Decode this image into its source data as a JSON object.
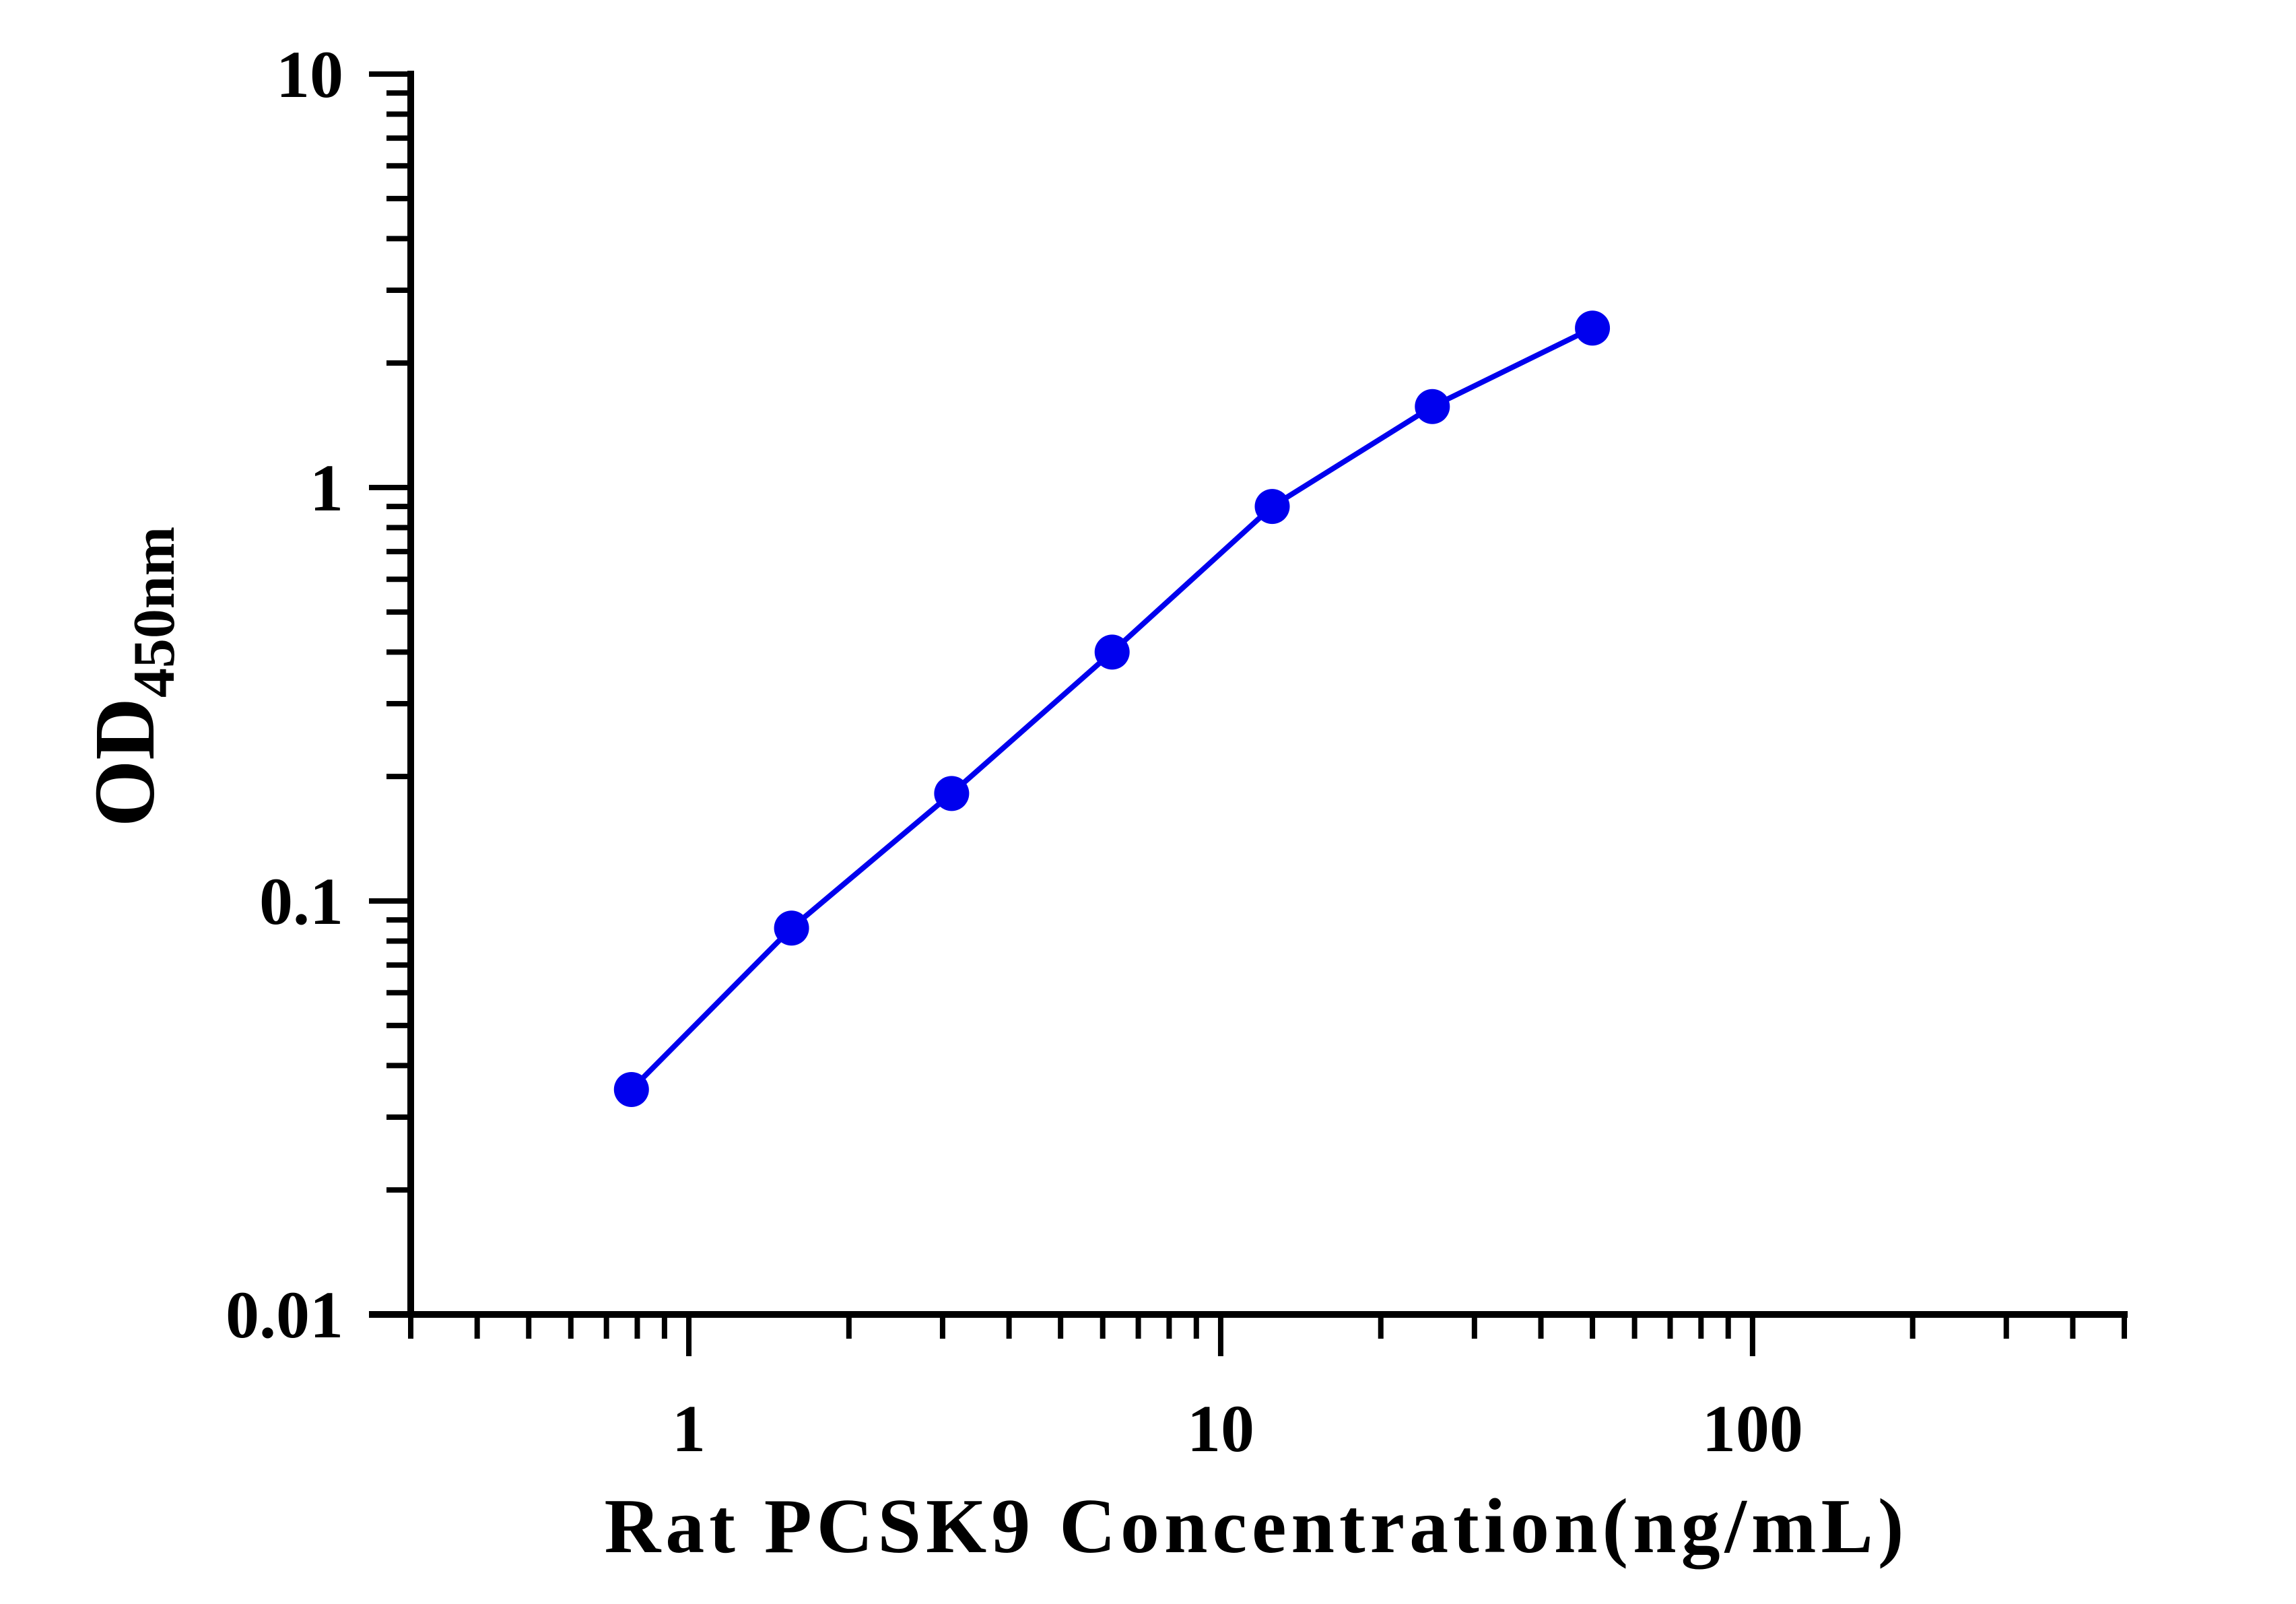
{
  "chart_data": {
    "type": "line",
    "xlabel": "Rat PCSK9 Concentration(ng/mL)",
    "ylabel_main": "OD",
    "ylabel_sub": "450nm",
    "x_scale": "log",
    "y_scale": "log",
    "xlim": [
      0.3,
      500
    ],
    "ylim": [
      0.01,
      10
    ],
    "x_tick_labels": [
      {
        "value": 1,
        "label": "1"
      },
      {
        "value": 10,
        "label": "10"
      },
      {
        "value": 100,
        "label": "100"
      }
    ],
    "y_tick_labels": [
      {
        "value": 0.01,
        "label": "0.01"
      },
      {
        "value": 0.1,
        "label": "0.1"
      },
      {
        "value": 1,
        "label": "1"
      },
      {
        "value": 10,
        "label": "10"
      }
    ],
    "grid": false,
    "legend": "none",
    "series": [
      {
        "color": "#0000ee",
        "x": [
          0.78,
          1.56,
          3.12,
          6.25,
          12.5,
          25,
          50
        ],
        "y": [
          0.035,
          0.086,
          0.182,
          0.4,
          0.9,
          1.57,
          2.43
        ]
      }
    ]
  }
}
